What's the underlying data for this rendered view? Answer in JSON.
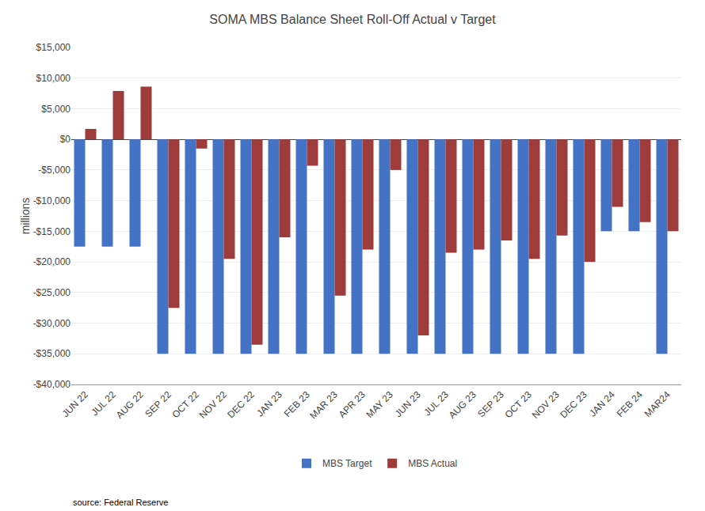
{
  "chart_data": {
    "type": "bar",
    "title": "SOMA MBS Balance Sheet Roll-Off Actual v Target",
    "categories": [
      "JUN 22",
      "JUL 22",
      "AUG 22",
      "SEP 22",
      "OCT 22",
      "NOV 22",
      "DEC 22",
      "JAN 23",
      "FEB 23",
      "MAR 23",
      "APR 23",
      "MAY 23",
      "JUN 23",
      "JUL 23",
      "AUG 23",
      "SEP 23",
      "OCT 23",
      "NOV 23",
      "DEC 23",
      "JAN 24",
      "FEB 24",
      "MAR24"
    ],
    "series": [
      {
        "name": "MBS Target",
        "color": "#4472C4",
        "values": [
          -17500,
          -17500,
          -17500,
          -35000,
          -35000,
          -35000,
          -35000,
          -35000,
          -35000,
          -35000,
          -35000,
          -35000,
          -35000,
          -35000,
          -35000,
          -35000,
          -35000,
          -35000,
          -35000,
          -15000,
          -15000,
          -35000
        ]
      },
      {
        "name": "MBS Actual",
        "color": "#9E3B3B",
        "values": [
          1700,
          7900,
          8600,
          -27500,
          -1500,
          -19500,
          -33500,
          -16000,
          -4300,
          -25500,
          -18000,
          -5000,
          -32000,
          -18500,
          -18000,
          -16500,
          -19500,
          -15700,
          -20000,
          -11000,
          -13500,
          -15000
        ]
      }
    ],
    "ylabel": "millions",
    "ylim": [
      -40000,
      15000
    ],
    "yticks": [
      {
        "value": -40000,
        "label": "-$40,000"
      },
      {
        "value": -35000,
        "label": "-$35,000"
      },
      {
        "value": -30000,
        "label": "-$30,000"
      },
      {
        "value": -25000,
        "label": "-$25,000"
      },
      {
        "value": -20000,
        "label": "-$20,000"
      },
      {
        "value": -15000,
        "label": "-$15,000"
      },
      {
        "value": -10000,
        "label": "-$10,000"
      },
      {
        "value": -5000,
        "label": "-$5,000"
      },
      {
        "value": 0,
        "label": "$0"
      },
      {
        "value": 5000,
        "label": "$5,000"
      },
      {
        "value": 10000,
        "label": "$10,000"
      },
      {
        "value": 15000,
        "label": "$15,000"
      }
    ],
    "grid": true,
    "legend": "bottom",
    "annotations": [
      "source: Federal Reserve"
    ]
  }
}
